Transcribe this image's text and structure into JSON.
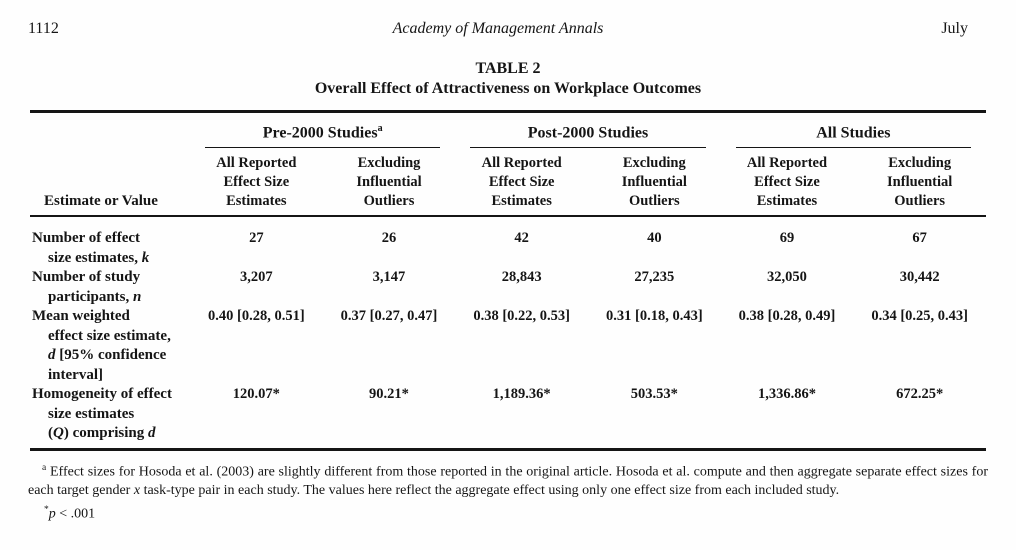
{
  "running_head": {
    "page_number": "1112",
    "journal": "Academy of Management Annals",
    "issue_month": "July"
  },
  "table": {
    "label": "TABLE 2",
    "title": "Overall Effect of Attractiveness on Workplace Outcomes",
    "stub_header": "Estimate or Value",
    "groups": [
      {
        "label": "Pre-2000 Studies",
        "marker": "a"
      },
      {
        "label": "Post-2000 Studies",
        "marker": ""
      },
      {
        "label": "All Studies",
        "marker": ""
      }
    ],
    "columns": [
      {
        "l1": "All Reported",
        "l2": "Effect Size",
        "l3": "Estimates"
      },
      {
        "l1": "Excluding",
        "l2": "Influential",
        "l3": "Outliers"
      },
      {
        "l1": "All Reported",
        "l2": "Effect Size",
        "l3": "Estimates"
      },
      {
        "l1": "Excluding",
        "l2": "Influential",
        "l3": "Outliers"
      },
      {
        "l1": "All Reported",
        "l2": "Effect Size",
        "l3": "Estimates"
      },
      {
        "l1": "Excluding",
        "l2": "Influential",
        "l3": "Outliers"
      }
    ],
    "rows": [
      {
        "label": {
          "l1": "Number of effect",
          "l2_pre": "size estimates, ",
          "l2_it": "k"
        },
        "values": [
          "27",
          "26",
          "42",
          "40",
          "69",
          "67"
        ]
      },
      {
        "label": {
          "l1": "Number of study",
          "l2_pre": "participants, ",
          "l2_it": "n"
        },
        "values": [
          "3,207",
          "3,147",
          "28,843",
          "27,235",
          "32,050",
          "30,442"
        ]
      },
      {
        "label": {
          "l1": "Mean weighted",
          "l2": "effect size estimate,",
          "l3_it": "d",
          "l3_rest": " [95% confidence",
          "l4": "interval]"
        },
        "values": [
          "0.40 [0.28, 0.51]",
          "0.37 [0.27, 0.47]",
          "0.38 [0.22, 0.53]",
          "0.31 [0.18, 0.43]",
          "0.38 [0.28, 0.49]",
          "0.34 [0.25, 0.43]"
        ]
      },
      {
        "label": {
          "l1": "Homogeneity of effect",
          "l2": "size estimates",
          "l3_pre": "(",
          "l3_it1": "Q",
          "l3_mid": ") comprising ",
          "l3_it2": "d"
        },
        "values": [
          "120.07*",
          "90.21*",
          "1,189.36*",
          "503.53*",
          "1,336.86*",
          "672.25*"
        ]
      }
    ],
    "footnote_a": {
      "marker": "a",
      "text_1": "Effect sizes for Hosoda et al. (2003) are slightly different from those reported in the original article. Hosoda et al. compute and then aggregate separate effect sizes for each target gender ",
      "x_italic": "x",
      "text_2": " task-type pair in each study. The values here reflect the aggregate effect using only one effect size from each included study."
    },
    "footnote_sig": {
      "marker": "*",
      "p_italic": "p",
      "text": " < .001"
    }
  }
}
